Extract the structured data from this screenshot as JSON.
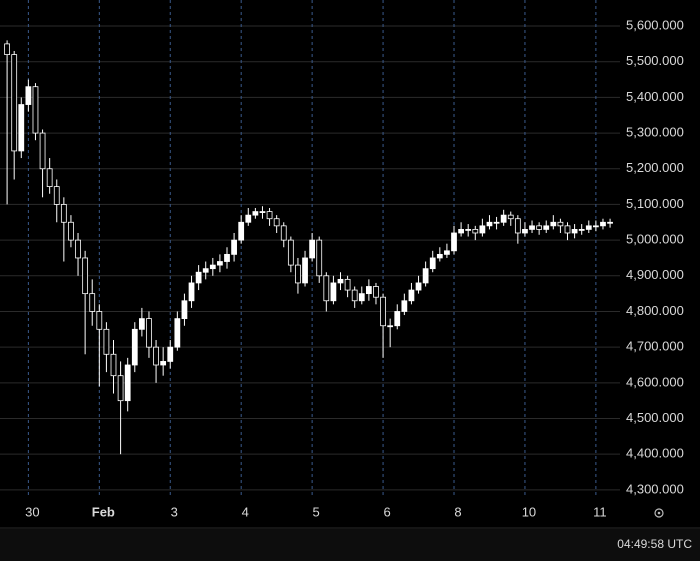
{
  "chart_data": {
    "type": "candlestick",
    "color": "#ffffff",
    "x": [
      -0.3,
      -0.2,
      -0.1,
      0.0,
      0.1,
      0.2,
      0.3,
      0.4,
      0.5,
      0.6,
      0.7,
      0.8,
      0.9,
      1.0,
      1.1,
      1.2,
      1.3,
      1.4,
      1.5,
      1.6,
      1.7,
      1.8,
      1.9,
      2.0,
      2.1,
      2.2,
      2.3,
      2.4,
      2.5,
      2.6,
      2.7,
      2.8,
      2.9,
      3.0,
      3.1,
      3.2,
      3.3,
      3.4,
      3.5,
      3.6,
      3.7,
      3.8,
      3.9,
      4.0,
      4.1,
      4.2,
      4.3,
      4.4,
      4.5,
      4.6,
      4.7,
      4.8,
      4.9,
      5.0,
      5.1,
      5.2,
      5.3,
      5.4,
      5.5,
      5.6,
      5.7,
      5.8,
      5.9,
      6.0,
      6.1,
      6.2,
      6.3,
      6.4,
      6.5,
      6.6,
      6.7,
      6.8,
      6.9,
      7.0,
      7.1,
      7.2,
      7.3,
      7.4,
      7.5,
      7.6,
      7.7,
      7.8,
      7.9,
      8.0,
      8.1,
      8.2
    ],
    "open": [
      5550,
      5520,
      5250,
      5380,
      5430,
      5300,
      5200,
      5150,
      5100,
      5050,
      5000,
      4950,
      4850,
      4800,
      4750,
      4680,
      4620,
      4550,
      4650,
      4750,
      4780,
      4700,
      4650,
      4660,
      4700,
      4780,
      4830,
      4880,
      4910,
      4920,
      4930,
      4940,
      4960,
      5000,
      5050,
      5070,
      5080,
      5080,
      5060,
      5040,
      5000,
      4930,
      4880,
      4950,
      5000,
      4900,
      4830,
      4880,
      4890,
      4860,
      4830,
      4850,
      4870,
      4840,
      4760,
      4760,
      4800,
      4830,
      4860,
      4880,
      4920,
      4950,
      4960,
      4970,
      5020,
      5030,
      5030,
      5020,
      5040,
      5050,
      5050,
      5070,
      5060,
      5020,
      5030,
      5040,
      5030,
      5040,
      5050,
      5040,
      5020,
      5030,
      5030,
      5040,
      5040,
      5050
    ],
    "high": [
      5560,
      5530,
      5400,
      5450,
      5440,
      5310,
      5230,
      5170,
      5120,
      5070,
      5020,
      4970,
      4890,
      4820,
      4770,
      4720,
      4660,
      4670,
      4770,
      4810,
      4800,
      4720,
      4700,
      4720,
      4800,
      4850,
      4900,
      4930,
      4940,
      4950,
      4960,
      4980,
      5020,
      5070,
      5090,
      5090,
      5095,
      5090,
      5070,
      5050,
      5010,
      4950,
      4970,
      5020,
      5010,
      4910,
      4900,
      4910,
      4900,
      4870,
      4870,
      4890,
      4880,
      4850,
      4780,
      4820,
      4850,
      4880,
      4900,
      4940,
      4970,
      4980,
      4990,
      5040,
      5050,
      5045,
      5040,
      5060,
      5070,
      5065,
      5085,
      5080,
      5070,
      5050,
      5055,
      5050,
      5055,
      5070,
      5060,
      5050,
      5045,
      5045,
      5055,
      5055,
      5060,
      5060
    ],
    "low": [
      5100,
      5170,
      5230,
      5360,
      5280,
      5120,
      5130,
      5050,
      4940,
      4980,
      4900,
      4680,
      4760,
      4590,
      4630,
      4570,
      4400,
      4520,
      4630,
      4730,
      4670,
      4600,
      4620,
      4640,
      4690,
      4760,
      4810,
      4860,
      4890,
      4900,
      4910,
      4920,
      4940,
      4990,
      5040,
      5060,
      5060,
      5040,
      5020,
      4980,
      4910,
      4850,
      4870,
      4940,
      4880,
      4800,
      4820,
      4860,
      4840,
      4810,
      4820,
      4830,
      4820,
      4670,
      4700,
      4750,
      4790,
      4820,
      4850,
      4870,
      4910,
      4940,
      4950,
      4960,
      5010,
      5010,
      5000,
      5010,
      5030,
      5030,
      5040,
      5040,
      4990,
      5010,
      5020,
      5015,
      5020,
      5030,
      5020,
      5000,
      5005,
      5015,
      5020,
      5025,
      5030,
      5035
    ],
    "close": [
      5520,
      5250,
      5380,
      5430,
      5300,
      5200,
      5150,
      5100,
      5050,
      5000,
      4950,
      4850,
      4800,
      4750,
      4680,
      4620,
      4550,
      4650,
      4750,
      4780,
      4700,
      4650,
      4660,
      4700,
      4780,
      4830,
      4880,
      4910,
      4920,
      4930,
      4940,
      4960,
      5000,
      5050,
      5070,
      5080,
      5080,
      5060,
      5040,
      5000,
      4930,
      4880,
      4950,
      5000,
      4900,
      4830,
      4880,
      4890,
      4860,
      4830,
      4850,
      4870,
      4840,
      4760,
      4760,
      4800,
      4830,
      4860,
      4880,
      4920,
      4950,
      4960,
      4970,
      5020,
      5030,
      5030,
      5020,
      5040,
      5050,
      5050,
      5070,
      5060,
      5020,
      5030,
      5040,
      5030,
      5040,
      5050,
      5040,
      5020,
      5030,
      5030,
      5040,
      5040,
      5050,
      5050
    ],
    "xlim": [
      -0.4,
      8.34
    ],
    "xticks": [
      {
        "value": 0,
        "label": "30"
      },
      {
        "value": 1,
        "label": "Feb"
      },
      {
        "value": 2,
        "label": "3"
      },
      {
        "value": 3,
        "label": "4"
      },
      {
        "value": 4,
        "label": "5"
      },
      {
        "value": 5,
        "label": "6"
      },
      {
        "value": 6,
        "label": "8"
      },
      {
        "value": 7,
        "label": "10"
      },
      {
        "value": 8,
        "label": "11"
      }
    ],
    "ylim": [
      4280,
      5673
    ],
    "yticks": [
      {
        "value": 4300,
        "label": "4,300.000"
      },
      {
        "value": 4400,
        "label": "4,400.000"
      },
      {
        "value": 4500,
        "label": "4,500.000"
      },
      {
        "value": 4600,
        "label": "4,600.000"
      },
      {
        "value": 4700,
        "label": "4,700.000"
      },
      {
        "value": 4800,
        "label": "4,800.000"
      },
      {
        "value": 4900,
        "label": "4,900.000"
      },
      {
        "value": 5000,
        "label": "5,000.000"
      },
      {
        "value": 5100,
        "label": "5,100.000"
      },
      {
        "value": 5200,
        "label": "5,200.000"
      },
      {
        "value": 5300,
        "label": "5,300.000"
      },
      {
        "value": 5400,
        "label": "5,400.000"
      },
      {
        "value": 5500,
        "label": "5,500.000"
      },
      {
        "value": 5600,
        "label": "5,600.000"
      }
    ],
    "grid": true
  },
  "status_bar": {
    "time": "04:49:58 UTC"
  }
}
